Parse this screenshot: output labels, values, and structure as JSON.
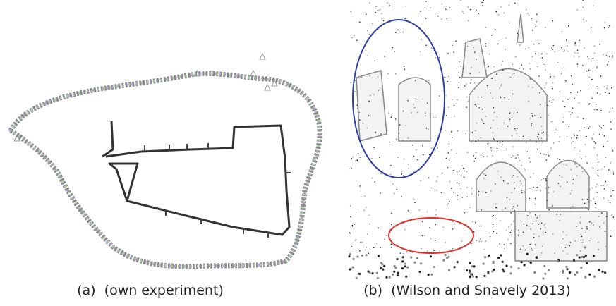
{
  "figure": {
    "panels": [
      {
        "label": "(a)",
        "caption": "(own experiment)"
      },
      {
        "label": "(b)",
        "caption": "(Wilson and Snavely 2013)"
      }
    ]
  }
}
